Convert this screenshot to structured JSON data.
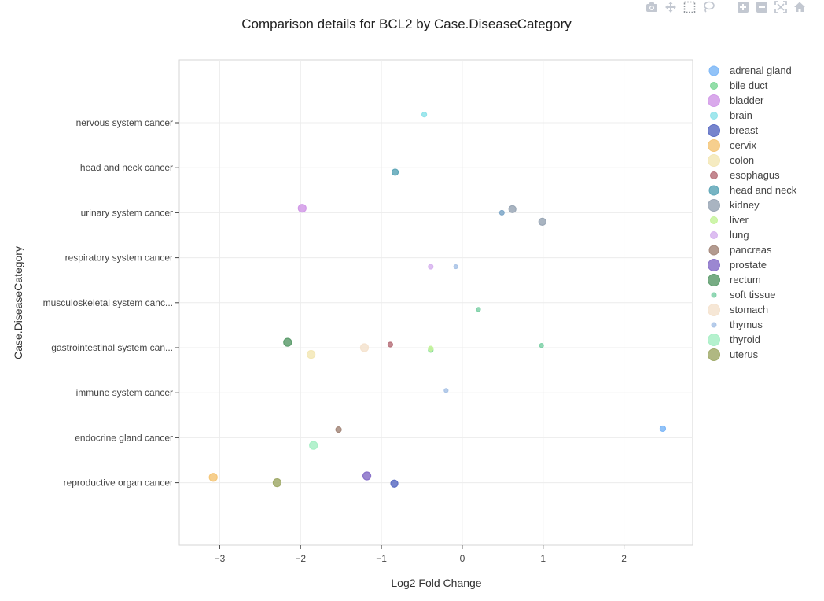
{
  "modebar": {
    "icons": [
      "camera-icon",
      "pan-icon",
      "box-select-icon",
      "lasso-icon",
      "zoom-in-icon",
      "zoom-out-icon",
      "autoscale-icon",
      "home-icon"
    ]
  },
  "chart_data": {
    "type": "scatter",
    "title": "Comparison details for BCL2 by Case.DiseaseCategory",
    "xlabel": "Log2 Fold Change",
    "ylabel": "Case.DiseaseCategory",
    "xlim": [
      -3.5,
      2.85
    ],
    "x_ticks": [
      -3,
      -2,
      -1,
      0,
      1,
      2
    ],
    "x_tick_labels": [
      "−3",
      "−2",
      "−1",
      "0",
      "1",
      "2"
    ],
    "categories": [
      "reproductive organ cancer",
      "endocrine gland cancer",
      "immune system cancer",
      "gastrointestinal system can...",
      "musculoskeletal system canc...",
      "respiratory system cancer",
      "urinary system cancer",
      "head and neck cancer",
      "nervous system cancer"
    ],
    "grid": true,
    "legend_position": "right",
    "series": [
      {
        "name": "adrenal gland",
        "color": "#7fb8f7",
        "size": 7,
        "points": [
          {
            "x": 2.48,
            "category": "endocrine gland cancer",
            "offset": -0.2
          }
        ]
      },
      {
        "name": "bile duct",
        "color": "#80d89a",
        "size": 6,
        "points": [
          {
            "x": -0.39,
            "category": "gastrointestinal system can...",
            "offset": 0.05
          }
        ]
      },
      {
        "name": "bladder",
        "color": "#d29ae8",
        "size": 10,
        "points": [
          {
            "x": -1.98,
            "category": "urinary system cancer",
            "offset": -0.1
          }
        ]
      },
      {
        "name": "brain",
        "color": "#90e3ea",
        "size": 6,
        "points": [
          {
            "x": -0.47,
            "category": "nervous system cancer",
            "offset": -0.18
          }
        ]
      },
      {
        "name": "breast",
        "color": "#5e6fc4",
        "size": 9,
        "points": [
          {
            "x": -0.84,
            "category": "reproductive organ cancer",
            "offset": 0.02
          }
        ]
      },
      {
        "name": "cervix",
        "color": "#f5c77a",
        "size": 10,
        "points": [
          {
            "x": -3.08,
            "category": "reproductive organ cancer",
            "offset": -0.12
          }
        ]
      },
      {
        "name": "colon",
        "color": "#f3e7b6",
        "size": 10,
        "points": [
          {
            "x": -1.87,
            "category": "gastrointestinal system can...",
            "offset": 0.15
          }
        ]
      },
      {
        "name": "esophagus",
        "color": "#b8737c",
        "size": 6,
        "points": [
          {
            "x": -0.89,
            "category": "gastrointestinal system can...",
            "offset": -0.07
          }
        ]
      },
      {
        "name": "head and neck",
        "color": "#5fa7b8",
        "size": 8,
        "points": [
          {
            "x": -0.83,
            "category": "head and neck cancer",
            "offset": 0.1
          }
        ]
      },
      {
        "name": "kidney",
        "color": "#9aa7b6",
        "size": 9,
        "points": [
          {
            "x": 0.62,
            "category": "urinary system cancer",
            "offset": -0.08
          },
          {
            "x": 0.99,
            "category": "urinary system cancer",
            "offset": 0.2
          }
        ]
      },
      {
        "name": "liver",
        "color": "#c6f39c",
        "size": 6,
        "points": [
          {
            "x": -0.39,
            "category": "gastrointestinal system can...",
            "offset": 0.02
          }
        ]
      },
      {
        "name": "lung",
        "color": "#d7b3ef",
        "size": 6,
        "points": [
          {
            "x": -0.39,
            "category": "respiratory system cancer",
            "offset": 0.2
          }
        ]
      },
      {
        "name": "pancreas",
        "color": "#a68a7d",
        "size": 7,
        "points": [
          {
            "x": -1.53,
            "category": "endocrine gland cancer",
            "offset": -0.18
          }
        ]
      },
      {
        "name": "prostate",
        "color": "#8a72c9",
        "size": 10,
        "points": [
          {
            "x": -1.18,
            "category": "reproductive organ cancer",
            "offset": -0.15
          }
        ]
      },
      {
        "name": "rectum",
        "color": "#5f9e6f",
        "size": 10,
        "points": [
          {
            "x": -2.16,
            "category": "gastrointestinal system can...",
            "offset": -0.12
          }
        ]
      },
      {
        "name": "soft tissue",
        "color": "#7fd1a8",
        "size": 5,
        "points": [
          {
            "x": 0.2,
            "category": "musculoskeletal system canc...",
            "offset": 0.15
          },
          {
            "x": 0.98,
            "category": "gastrointestinal system can...",
            "offset": -0.05
          }
        ]
      },
      {
        "name": "stomach",
        "color": "#f5e3cf",
        "size": 10,
        "points": [
          {
            "x": -1.21,
            "category": "gastrointestinal system can...",
            "offset": 0.0
          }
        ]
      },
      {
        "name": "thymus",
        "color": "#a9c3e6",
        "size": 5,
        "points": [
          {
            "x": -0.2,
            "category": "immune system cancer",
            "offset": -0.05
          },
          {
            "x": -0.08,
            "category": "respiratory system cancer",
            "offset": 0.2
          }
        ]
      },
      {
        "name": "thyroid",
        "color": "#a8efc6",
        "size": 10,
        "points": [
          {
            "x": -1.84,
            "category": "endocrine gland cancer",
            "offset": 0.17
          }
        ]
      },
      {
        "name": "uterus",
        "color": "#a2ac6c",
        "size": 10,
        "points": [
          {
            "x": -2.29,
            "category": "reproductive organ cancer",
            "offset": 0.0
          }
        ]
      }
    ],
    "extra_points": [
      {
        "x": 0.49,
        "category": "urinary system cancer",
        "offset": 0.0,
        "color": "#7ea7c8",
        "size": 6
      }
    ]
  }
}
